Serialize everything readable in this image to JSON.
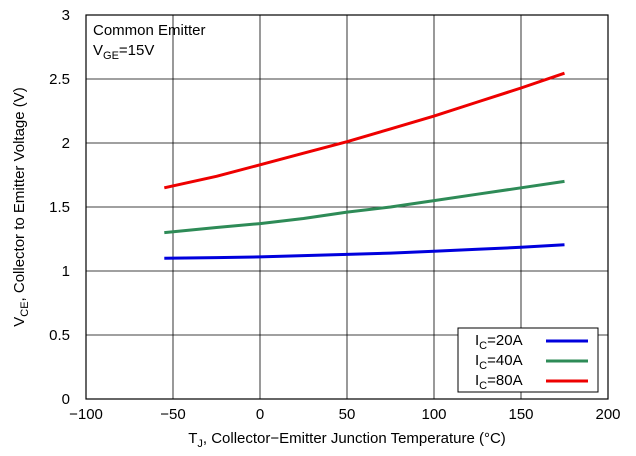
{
  "chart_data": {
    "type": "line",
    "x_axis": {
      "label_main": "T",
      "label_sub": "J",
      "label_rest": ", Collector−Emitter Junction Temperature (°C)",
      "range": [
        -100,
        200
      ],
      "ticks": [
        -100,
        -50,
        0,
        50,
        100,
        150,
        200
      ],
      "tick_labels": [
        "−100",
        "−50",
        "0",
        "50",
        "100",
        "150",
        "200"
      ]
    },
    "y_axis": {
      "label_main": "V",
      "label_sub": "CE",
      "label_rest": ", Collector to Emitter Voltage (V)",
      "range": [
        0,
        3
      ],
      "ticks": [
        0,
        0.5,
        1,
        1.5,
        2,
        2.5,
        3
      ],
      "tick_labels": [
        "0",
        "0.5",
        "1",
        "1.5",
        "2",
        "2.5",
        "3"
      ]
    },
    "grid": true,
    "annotations": {
      "line1": "Common Emitter",
      "line2_main": "V",
      "line2_sub": "GE",
      "line2_rest": "=15V"
    },
    "legend": {
      "placement": "bottom-right",
      "entries": [
        {
          "main": "I",
          "sub": "C",
          "rest": "=20A",
          "color": "#0000dd"
        },
        {
          "main": "I",
          "sub": "C",
          "rest": "=40A",
          "color": "#2e8b57"
        },
        {
          "main": "I",
          "sub": "C",
          "rest": "=80A",
          "color": "#ee0000"
        }
      ]
    },
    "series": [
      {
        "id": "ic-20a",
        "color": "#0000dd",
        "x": [
          -55,
          -25,
          0,
          25,
          50,
          75,
          100,
          125,
          150,
          175
        ],
        "y": [
          1.1,
          1.105,
          1.11,
          1.12,
          1.13,
          1.14,
          1.155,
          1.17,
          1.185,
          1.205
        ]
      },
      {
        "id": "ic-40a",
        "color": "#2e8b57",
        "x": [
          -55,
          -25,
          0,
          25,
          50,
          75,
          100,
          125,
          150,
          175
        ],
        "y": [
          1.3,
          1.34,
          1.37,
          1.41,
          1.46,
          1.5,
          1.55,
          1.6,
          1.65,
          1.7
        ]
      },
      {
        "id": "ic-80a",
        "color": "#ee0000",
        "x": [
          -55,
          -25,
          0,
          25,
          50,
          75,
          100,
          125,
          150,
          175
        ],
        "y": [
          1.65,
          1.74,
          1.83,
          1.92,
          2.01,
          2.11,
          2.21,
          2.32,
          2.43,
          2.545
        ]
      }
    ]
  }
}
